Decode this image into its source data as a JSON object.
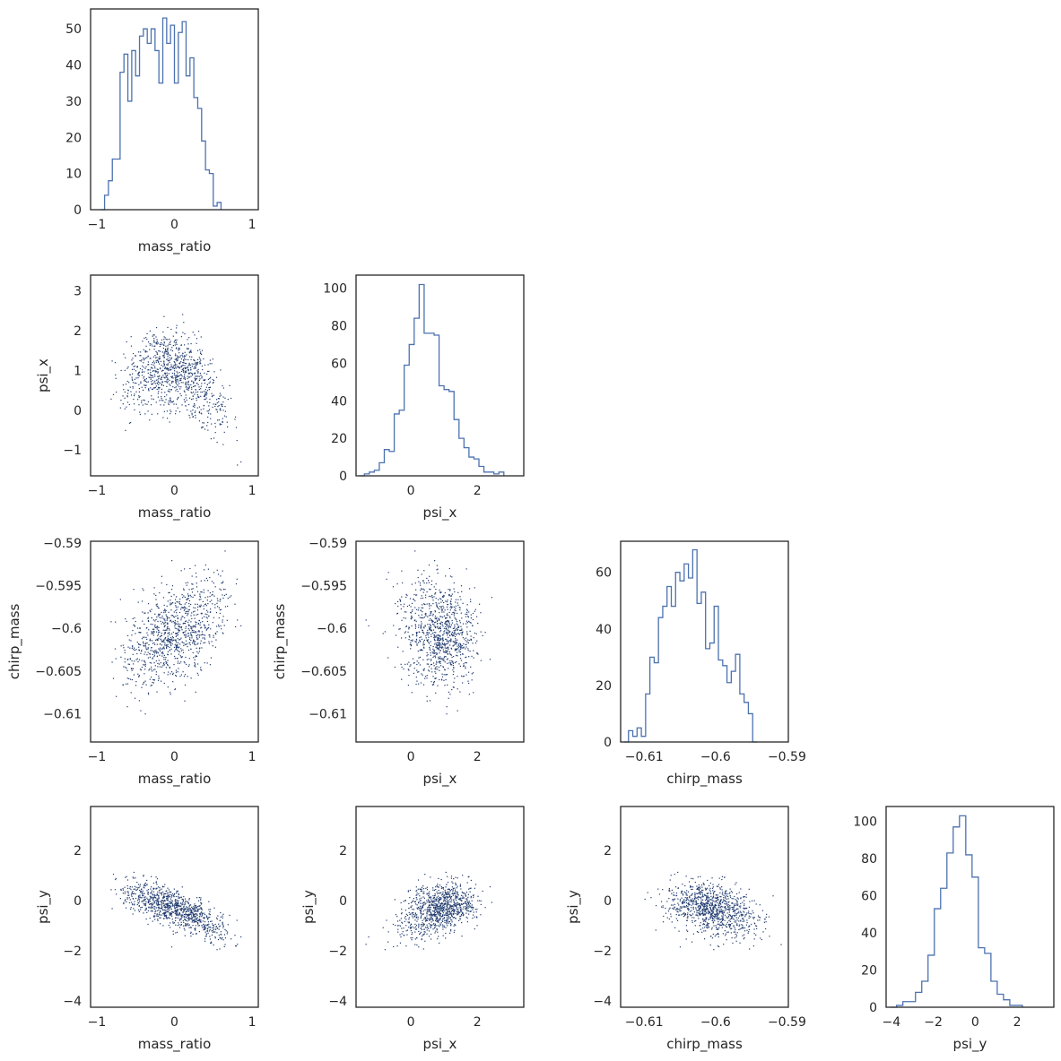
{
  "chart_data": {
    "type": "corner",
    "variables": [
      "mass_ratio",
      "psi_x",
      "chirp_mass",
      "psi_y"
    ],
    "ranges": {
      "mass_ratio": [
        -1.08,
        1.08
      ],
      "psi_x": [
        -1.65,
        3.4
      ],
      "chirp_mass": [
        -0.6133,
        -0.5898
      ],
      "psi_y": [
        -4.25,
        3.75
      ]
    },
    "ticks": {
      "mass_ratio": [
        -1,
        0,
        1
      ],
      "psi_x": [
        0,
        2
      ],
      "chirp_mass": [
        -0.61,
        -0.6,
        -0.59
      ],
      "chirp_mass_y": [
        -0.61,
        -0.605,
        -0.6,
        -0.595,
        -0.59
      ],
      "psi_x_y": [
        -1,
        0,
        1,
        2,
        3
      ],
      "psi_y": [
        -4,
        -2,
        0,
        2
      ],
      "psi_y_hist_x": [
        -4,
        -2,
        0,
        2
      ]
    },
    "histograms": {
      "mass_ratio": {
        "ylim": [
          0,
          55.5
        ],
        "yticks": [
          0,
          10,
          20,
          30,
          40,
          50
        ],
        "edges_start": -0.95,
        "bin_width": 0.05,
        "counts": [
          0,
          4,
          8,
          14,
          14,
          38,
          43,
          30,
          44,
          37,
          48,
          50,
          46,
          50,
          44,
          35,
          53,
          46,
          51,
          35,
          49,
          52,
          37,
          42,
          31,
          28,
          19,
          11,
          10,
          1,
          2
        ]
      },
      "psi_x": {
        "ylim": [
          0,
          107
        ],
        "yticks": [
          0,
          20,
          40,
          60,
          80,
          100
        ],
        "edges_start": -1.55,
        "bin_width": 0.15,
        "counts": [
          0,
          1,
          2,
          3,
          7,
          14,
          13,
          33,
          35,
          59,
          70,
          84,
          102,
          76,
          76,
          75,
          48,
          46,
          45,
          30,
          20,
          15,
          10,
          9,
          5,
          2,
          2,
          1,
          2
        ]
      },
      "chirp_mass": {
        "ylim": [
          0,
          71
        ],
        "yticks": [
          0,
          20,
          40,
          60
        ],
        "edges_start": -0.6128,
        "bin_width": 0.0006,
        "counts": [
          0,
          4,
          2,
          5,
          2,
          17,
          30,
          28,
          44,
          48,
          55,
          48,
          60,
          57,
          63,
          58,
          68,
          49,
          53,
          33,
          35,
          48,
          29,
          27,
          21,
          25,
          31,
          17,
          14,
          10,
          0
        ]
      },
      "psi_y": {
        "ylim": [
          0,
          108
        ],
        "yticks": [
          0,
          20,
          40,
          60,
          80,
          100
        ],
        "edges_start": -4.05,
        "bin_width": 0.3,
        "counts": [
          0,
          1,
          3,
          3,
          8,
          14,
          28,
          53,
          64,
          83,
          97,
          103,
          82,
          70,
          32,
          29,
          14,
          7,
          4,
          1,
          1
        ]
      }
    },
    "scatter": {
      "points": 1000,
      "marker_color": "#1f3a6e",
      "hist_color": "#4c72b0"
    }
  }
}
